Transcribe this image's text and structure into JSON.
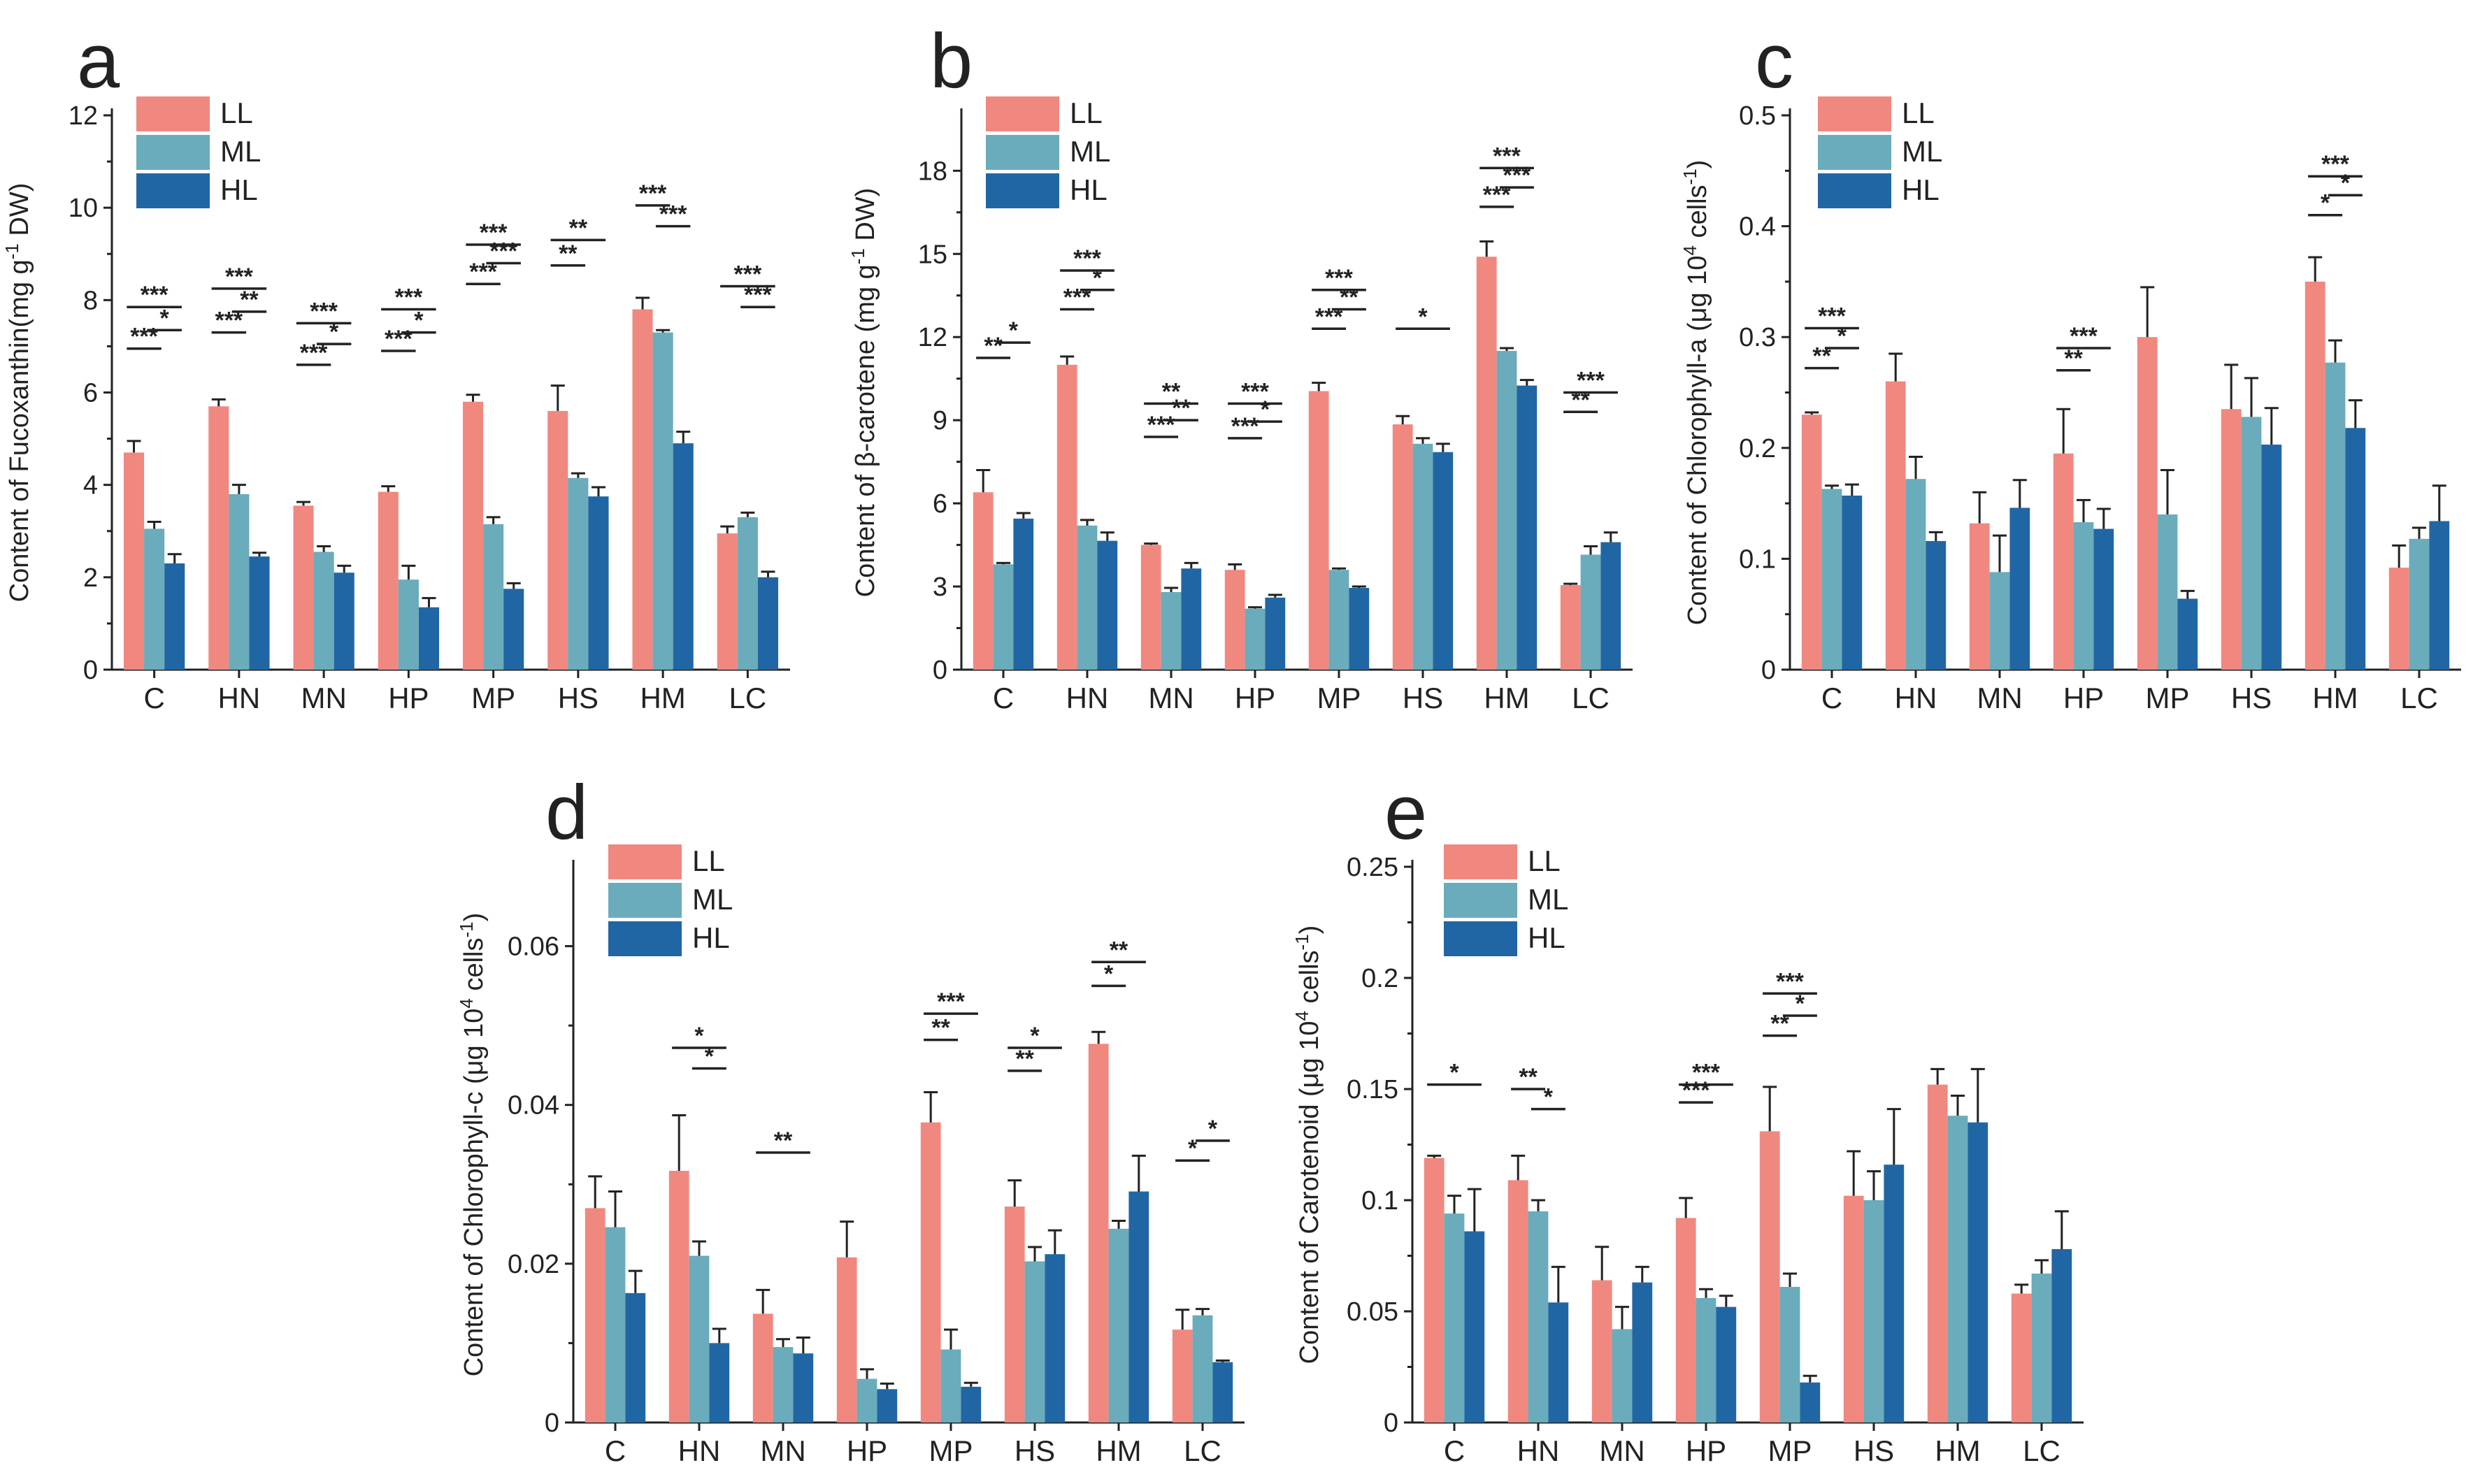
{
  "figure": {
    "colors": {
      "LL": "#F08880",
      "ML": "#6AACBB",
      "HL": "#2166A4"
    }
  },
  "chart_data": [
    {
      "panel": "a",
      "type": "bar",
      "ylabel_text": "Content of Fucoxanthin(mg g",
      "ylabel_sup": "-1",
      "ylabel_tail": " DW)",
      "categories": [
        "C",
        "HN",
        "MN",
        "HP",
        "MP",
        "HS",
        "HM",
        "LC"
      ],
      "ylim": [
        0,
        12
      ],
      "yticks": [
        0,
        2,
        4,
        6,
        8,
        10,
        12
      ],
      "legend": [
        "LL",
        "ML",
        "HL"
      ],
      "legend_position": "top-left",
      "series": [
        {
          "name": "LL",
          "values": [
            4.7,
            5.7,
            3.55,
            3.85,
            5.8,
            5.6,
            7.8,
            2.95
          ],
          "errors": [
            0.25,
            0.15,
            0.08,
            0.12,
            0.15,
            0.55,
            0.25,
            0.15
          ]
        },
        {
          "name": "ML",
          "values": [
            3.05,
            3.8,
            2.55,
            1.95,
            3.15,
            4.15,
            7.3,
            3.3
          ],
          "errors": [
            0.15,
            0.2,
            0.12,
            0.3,
            0.15,
            0.1,
            0.05,
            0.1
          ]
        },
        {
          "name": "HL",
          "values": [
            2.3,
            2.45,
            2.1,
            1.35,
            1.75,
            3.75,
            4.9,
            2.0
          ],
          "errors": [
            0.2,
            0.08,
            0.15,
            0.2,
            0.12,
            0.2,
            0.25,
            0.12
          ]
        }
      ],
      "significance": [
        {
          "cat": 0,
          "from": 0,
          "to": 1,
          "y": 6.95,
          "text": "***"
        },
        {
          "cat": 0,
          "from": 0,
          "to": 2,
          "y": 7.85,
          "text": "***"
        },
        {
          "cat": 0,
          "from": 1,
          "to": 2,
          "y": 7.35,
          "text": "*"
        },
        {
          "cat": 1,
          "from": 0,
          "to": 1,
          "y": 7.3,
          "text": "***"
        },
        {
          "cat": 1,
          "from": 0,
          "to": 2,
          "y": 8.25,
          "text": "***"
        },
        {
          "cat": 1,
          "from": 1,
          "to": 2,
          "y": 7.75,
          "text": "**"
        },
        {
          "cat": 2,
          "from": 0,
          "to": 1,
          "y": 6.6,
          "text": "***"
        },
        {
          "cat": 2,
          "from": 0,
          "to": 2,
          "y": 7.5,
          "text": "***"
        },
        {
          "cat": 2,
          "from": 1,
          "to": 2,
          "y": 7.05,
          "text": "*"
        },
        {
          "cat": 3,
          "from": 0,
          "to": 1,
          "y": 6.9,
          "text": "***"
        },
        {
          "cat": 3,
          "from": 0,
          "to": 2,
          "y": 7.8,
          "text": "***"
        },
        {
          "cat": 3,
          "from": 1,
          "to": 2,
          "y": 7.3,
          "text": "*"
        },
        {
          "cat": 4,
          "from": 0,
          "to": 1,
          "y": 8.35,
          "text": "***"
        },
        {
          "cat": 4,
          "from": 0,
          "to": 2,
          "y": 9.2,
          "text": "***"
        },
        {
          "cat": 4,
          "from": 1,
          "to": 2,
          "y": 8.8,
          "text": "***"
        },
        {
          "cat": 5,
          "from": 0,
          "to": 1,
          "y": 8.75,
          "text": "**"
        },
        {
          "cat": 5,
          "from": 0,
          "to": 2,
          "y": 9.3,
          "text": "**"
        },
        {
          "cat": 6,
          "from": 0,
          "to": 1,
          "y": 10.05,
          "text": "***"
        },
        {
          "cat": 6,
          "from": 1,
          "to": 2,
          "y": 9.6,
          "text": "***"
        },
        {
          "cat": 7,
          "from": 0,
          "to": 2,
          "y": 8.3,
          "text": "***"
        },
        {
          "cat": 7,
          "from": 1,
          "to": 2,
          "y": 7.85,
          "text": "***"
        }
      ]
    },
    {
      "panel": "b",
      "type": "bar",
      "ylabel_text": "Content of β-carotene (mg g",
      "ylabel_sup": "-1",
      "ylabel_tail": " DW)",
      "categories": [
        "C",
        "HN",
        "MN",
        "HP",
        "MP",
        "HS",
        "HM",
        "LC"
      ],
      "ylim": [
        0,
        20
      ],
      "yticks": [
        0,
        3,
        6,
        9,
        12,
        15,
        18
      ],
      "legend": [
        "LL",
        "ML",
        "HL"
      ],
      "legend_position": "top-left",
      "series": [
        {
          "name": "LL",
          "values": [
            6.4,
            11.0,
            4.5,
            3.6,
            10.05,
            8.85,
            14.9,
            3.05
          ],
          "errors": [
            0.8,
            0.3,
            0.05,
            0.2,
            0.3,
            0.3,
            0.55,
            0.05
          ]
        },
        {
          "name": "ML",
          "values": [
            3.8,
            5.2,
            2.8,
            2.2,
            3.6,
            8.15,
            11.5,
            4.15
          ],
          "errors": [
            0.05,
            0.2,
            0.15,
            0.05,
            0.05,
            0.2,
            0.1,
            0.3
          ]
        },
        {
          "name": "HL",
          "values": [
            5.45,
            4.65,
            3.65,
            2.6,
            2.95,
            7.85,
            10.25,
            4.6
          ],
          "errors": [
            0.2,
            0.3,
            0.2,
            0.1,
            0.05,
            0.3,
            0.2,
            0.35
          ]
        }
      ],
      "significance": [
        {
          "cat": 0,
          "from": 0,
          "to": 1,
          "y": 11.25,
          "text": "**"
        },
        {
          "cat": 0,
          "from": 1,
          "to": 2,
          "y": 11.8,
          "text": "*"
        },
        {
          "cat": 1,
          "from": 0,
          "to": 1,
          "y": 13.0,
          "text": "***"
        },
        {
          "cat": 1,
          "from": 0,
          "to": 2,
          "y": 14.4,
          "text": "***"
        },
        {
          "cat": 1,
          "from": 1,
          "to": 2,
          "y": 13.7,
          "text": "*"
        },
        {
          "cat": 2,
          "from": 0,
          "to": 1,
          "y": 8.4,
          "text": "***"
        },
        {
          "cat": 2,
          "from": 0,
          "to": 2,
          "y": 9.6,
          "text": "**"
        },
        {
          "cat": 2,
          "from": 1,
          "to": 2,
          "y": 9.0,
          "text": "**"
        },
        {
          "cat": 3,
          "from": 0,
          "to": 1,
          "y": 8.35,
          "text": "***"
        },
        {
          "cat": 3,
          "from": 0,
          "to": 2,
          "y": 9.6,
          "text": "***"
        },
        {
          "cat": 3,
          "from": 1,
          "to": 2,
          "y": 8.95,
          "text": "*"
        },
        {
          "cat": 4,
          "from": 0,
          "to": 1,
          "y": 12.3,
          "text": "***"
        },
        {
          "cat": 4,
          "from": 0,
          "to": 2,
          "y": 13.7,
          "text": "***"
        },
        {
          "cat": 4,
          "from": 1,
          "to": 2,
          "y": 13.0,
          "text": "**"
        },
        {
          "cat": 5,
          "from": 0,
          "to": 2,
          "y": 12.3,
          "text": "*"
        },
        {
          "cat": 6,
          "from": 0,
          "to": 1,
          "y": 16.7,
          "text": "***"
        },
        {
          "cat": 6,
          "from": 0,
          "to": 2,
          "y": 18.1,
          "text": "***"
        },
        {
          "cat": 6,
          "from": 1,
          "to": 2,
          "y": 17.4,
          "text": "***"
        },
        {
          "cat": 7,
          "from": 0,
          "to": 1,
          "y": 9.3,
          "text": "**"
        },
        {
          "cat": 7,
          "from": 0,
          "to": 2,
          "y": 10.0,
          "text": "***"
        }
      ]
    },
    {
      "panel": "c",
      "type": "bar",
      "ylabel_text": "Content of Chlorophyll-a (μg 10",
      "ylabel_sup": "4",
      "ylabel_tail": " cells",
      "ylabel_sup2": "-1",
      "ylabel_close": ")",
      "categories": [
        "C",
        "HN",
        "MN",
        "HP",
        "MP",
        "HS",
        "HM",
        "LC"
      ],
      "ylim": [
        0,
        0.5
      ],
      "yticks": [
        0.0,
        0.1,
        0.2,
        0.3,
        0.4,
        0.5
      ],
      "legend": [
        "LL",
        "ML",
        "HL"
      ],
      "legend_position": "top-left",
      "series": [
        {
          "name": "LL",
          "values": [
            0.23,
            0.26,
            0.132,
            0.195,
            0.3,
            0.235,
            0.35,
            0.092
          ],
          "errors": [
            0.002,
            0.025,
            0.028,
            0.04,
            0.045,
            0.04,
            0.022,
            0.02
          ]
        },
        {
          "name": "ML",
          "values": [
            0.163,
            0.172,
            0.088,
            0.133,
            0.14,
            0.228,
            0.277,
            0.118
          ],
          "errors": [
            0.003,
            0.02,
            0.033,
            0.02,
            0.04,
            0.035,
            0.02,
            0.01
          ]
        },
        {
          "name": "HL",
          "values": [
            0.157,
            0.116,
            0.146,
            0.127,
            0.064,
            0.203,
            0.218,
            0.134
          ],
          "errors": [
            0.01,
            0.008,
            0.025,
            0.018,
            0.007,
            0.033,
            0.025,
            0.032
          ]
        }
      ],
      "significance": [
        {
          "cat": 0,
          "from": 0,
          "to": 1,
          "y": 0.272,
          "text": "**"
        },
        {
          "cat": 0,
          "from": 0,
          "to": 2,
          "y": 0.308,
          "text": "***"
        },
        {
          "cat": 0,
          "from": 1,
          "to": 2,
          "y": 0.29,
          "text": "*"
        },
        {
          "cat": 3,
          "from": 0,
          "to": 1,
          "y": 0.27,
          "text": "**"
        },
        {
          "cat": 3,
          "from": 0,
          "to": 2,
          "y": 0.29,
          "text": "***"
        },
        {
          "cat": 6,
          "from": 0,
          "to": 1,
          "y": 0.41,
          "text": "*"
        },
        {
          "cat": 6,
          "from": 0,
          "to": 2,
          "y": 0.445,
          "text": "***"
        },
        {
          "cat": 6,
          "from": 1,
          "to": 2,
          "y": 0.428,
          "text": "*"
        }
      ]
    },
    {
      "panel": "d",
      "type": "bar",
      "ylabel_text": "Content of Chlorophyll-c (μg 10",
      "ylabel_sup": "4",
      "ylabel_tail": " cells",
      "ylabel_sup2": "-1",
      "ylabel_close": ")",
      "categories": [
        "C",
        "HN",
        "MN",
        "HP",
        "MP",
        "HS",
        "HM",
        "LC"
      ],
      "ylim": [
        0,
        0.07
      ],
      "yticks": [
        0.0,
        0.02,
        0.04,
        0.06
      ],
      "legend": [
        "LL",
        "ML",
        "HL"
      ],
      "legend_position": "top-left",
      "series": [
        {
          "name": "LL",
          "values": [
            0.027,
            0.0317,
            0.0137,
            0.0208,
            0.0378,
            0.0272,
            0.0477,
            0.0117
          ],
          "errors": [
            0.004,
            0.007,
            0.003,
            0.0045,
            0.0038,
            0.0033,
            0.0015,
            0.0025
          ]
        },
        {
          "name": "ML",
          "values": [
            0.0246,
            0.021,
            0.0095,
            0.0055,
            0.0092,
            0.0203,
            0.0244,
            0.0135
          ],
          "errors": [
            0.0045,
            0.0018,
            0.001,
            0.0012,
            0.0025,
            0.0018,
            0.001,
            0.0008
          ]
        },
        {
          "name": "HL",
          "values": [
            0.0163,
            0.01,
            0.0087,
            0.0042,
            0.0045,
            0.0212,
            0.0291,
            0.0076
          ],
          "errors": [
            0.0028,
            0.0018,
            0.002,
            0.0007,
            0.0005,
            0.003,
            0.0045,
            0.0002
          ]
        }
      ],
      "significance": [
        {
          "cat": 1,
          "from": 0,
          "to": 2,
          "y": 0.0472,
          "text": "*"
        },
        {
          "cat": 1,
          "from": 1,
          "to": 2,
          "y": 0.0446,
          "text": "*"
        },
        {
          "cat": 2,
          "from": 0,
          "to": 2,
          "y": 0.034,
          "text": "**"
        },
        {
          "cat": 4,
          "from": 0,
          "to": 1,
          "y": 0.0482,
          "text": "**"
        },
        {
          "cat": 4,
          "from": 0,
          "to": 2,
          "y": 0.0515,
          "text": "***"
        },
        {
          "cat": 5,
          "from": 0,
          "to": 1,
          "y": 0.0443,
          "text": "**"
        },
        {
          "cat": 5,
          "from": 0,
          "to": 2,
          "y": 0.0472,
          "text": "*"
        },
        {
          "cat": 6,
          "from": 0,
          "to": 1,
          "y": 0.055,
          "text": "*"
        },
        {
          "cat": 6,
          "from": 0,
          "to": 2,
          "y": 0.058,
          "text": "**"
        },
        {
          "cat": 7,
          "from": 0,
          "to": 1,
          "y": 0.033,
          "text": "*"
        },
        {
          "cat": 7,
          "from": 1,
          "to": 2,
          "y": 0.0355,
          "text": "*"
        }
      ]
    },
    {
      "panel": "e",
      "type": "bar",
      "ylabel_text": "Content of Carotenoid (μg 10",
      "ylabel_sup": "4",
      "ylabel_tail": " cells",
      "ylabel_sup2": "-1",
      "ylabel_close": ")",
      "categories": [
        "C",
        "HN",
        "MN",
        "HP",
        "MP",
        "HS",
        "HM",
        "LC"
      ],
      "ylim": [
        0,
        0.25
      ],
      "yticks": [
        0.0,
        0.05,
        0.1,
        0.15,
        0.2,
        0.25
      ],
      "legend": [
        "LL",
        "ML",
        "HL"
      ],
      "legend_position": "top-left",
      "series": [
        {
          "name": "LL",
          "values": [
            0.119,
            0.109,
            0.064,
            0.092,
            0.131,
            0.102,
            0.152,
            0.058
          ],
          "errors": [
            0.001,
            0.011,
            0.015,
            0.009,
            0.02,
            0.02,
            0.007,
            0.004
          ]
        },
        {
          "name": "ML",
          "values": [
            0.094,
            0.095,
            0.042,
            0.056,
            0.061,
            0.1,
            0.138,
            0.067
          ],
          "errors": [
            0.008,
            0.005,
            0.01,
            0.004,
            0.006,
            0.013,
            0.009,
            0.006
          ]
        },
        {
          "name": "HL",
          "values": [
            0.086,
            0.054,
            0.063,
            0.052,
            0.018,
            0.116,
            0.135,
            0.078
          ],
          "errors": [
            0.019,
            0.016,
            0.007,
            0.005,
            0.003,
            0.025,
            0.024,
            0.017
          ]
        }
      ],
      "significance": [
        {
          "cat": 0,
          "from": 0,
          "to": 2,
          "y": 0.152,
          "text": "*"
        },
        {
          "cat": 1,
          "from": 0,
          "to": 1,
          "y": 0.15,
          "text": "**"
        },
        {
          "cat": 1,
          "from": 1,
          "to": 2,
          "y": 0.141,
          "text": "*"
        },
        {
          "cat": 3,
          "from": 0,
          "to": 1,
          "y": 0.144,
          "text": "***"
        },
        {
          "cat": 3,
          "from": 0,
          "to": 2,
          "y": 0.152,
          "text": "***"
        },
        {
          "cat": 4,
          "from": 0,
          "to": 1,
          "y": 0.174,
          "text": "**"
        },
        {
          "cat": 4,
          "from": 0,
          "to": 2,
          "y": 0.193,
          "text": "***"
        },
        {
          "cat": 4,
          "from": 1,
          "to": 2,
          "y": 0.183,
          "text": "*"
        }
      ]
    }
  ]
}
